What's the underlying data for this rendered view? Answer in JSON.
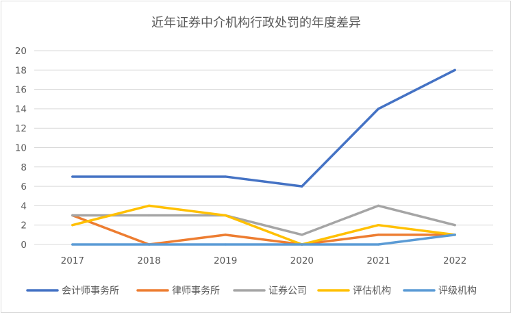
{
  "chart_data": {
    "type": "line",
    "title": "近年证券中介机构行政处罚的年度差异",
    "categories": [
      "2017",
      "2018",
      "2019",
      "2020",
      "2021",
      "2022"
    ],
    "ylim": [
      0,
      20
    ],
    "yticks": [
      0,
      2,
      4,
      6,
      8,
      10,
      12,
      14,
      16,
      18,
      20
    ],
    "grid": true,
    "legend_position": "bottom",
    "series": [
      {
        "name": "会计师事务所",
        "values": [
          7,
          7,
          7,
          6,
          14,
          18
        ],
        "color": "#4472c4"
      },
      {
        "name": "律师事务所",
        "values": [
          3,
          0,
          1,
          0,
          1,
          1
        ],
        "color": "#ed7d31"
      },
      {
        "name": "证券公司",
        "values": [
          3,
          3,
          3,
          1,
          4,
          2
        ],
        "color": "#a5a5a5"
      },
      {
        "name": "评估机构",
        "values": [
          2,
          4,
          3,
          0,
          2,
          1
        ],
        "color": "#ffc000"
      },
      {
        "name": "评级机构",
        "values": [
          0,
          0,
          0,
          0,
          0,
          1
        ],
        "color": "#5b9bd5"
      }
    ]
  }
}
